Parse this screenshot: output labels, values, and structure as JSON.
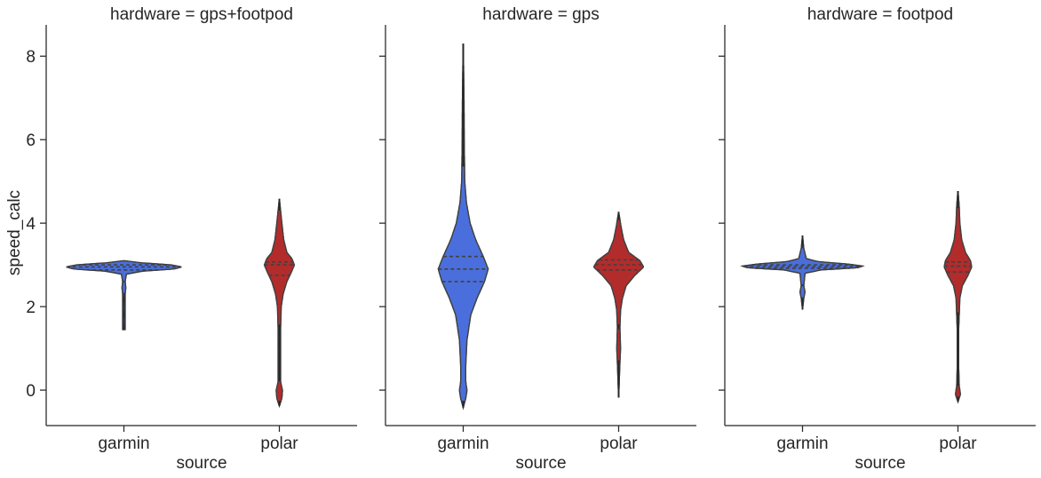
{
  "chart_data": {
    "type": "violin",
    "ylabel": "speed_calc",
    "xlabel": "source",
    "ylim": [
      -0.85,
      8.75
    ],
    "yticks": [
      0,
      2,
      4,
      6,
      8
    ],
    "categories": [
      "garmin",
      "polar"
    ],
    "colors": {
      "garmin": "#4a6fdc",
      "polar": "#b22c2c"
    },
    "facet_variable": "hardware",
    "facets": [
      {
        "title": "hardware = gps+footpod",
        "violins": [
          {
            "category": "garmin",
            "min": 1.45,
            "max": 3.1,
            "q1": 2.88,
            "median": 2.95,
            "q3": 3.0,
            "profile": [
              [
                1.45,
                0.01
              ],
              [
                2.3,
                0.01
              ],
              [
                2.45,
                0.015
              ],
              [
                2.6,
                0.01
              ],
              [
                2.78,
                0.02
              ],
              [
                2.85,
                0.15
              ],
              [
                2.9,
                0.4
              ],
              [
                2.95,
                0.46
              ],
              [
                3.0,
                0.38
              ],
              [
                3.05,
                0.14
              ],
              [
                3.1,
                0.0
              ]
            ]
          },
          {
            "category": "polar",
            "min": -0.38,
            "max": 4.58,
            "q1": 2.75,
            "median": 3.0,
            "q3": 3.07,
            "profile": [
              [
                -0.38,
                0.0
              ],
              [
                -0.2,
                0.02
              ],
              [
                0.0,
                0.025
              ],
              [
                0.2,
                0.01
              ],
              [
                0.5,
                0.01
              ],
              [
                1.5,
                0.01
              ],
              [
                2.0,
                0.015
              ],
              [
                2.3,
                0.03
              ],
              [
                2.6,
                0.06
              ],
              [
                2.85,
                0.1
              ],
              [
                3.0,
                0.12
              ],
              [
                3.15,
                0.1
              ],
              [
                3.3,
                0.06
              ],
              [
                3.6,
                0.035
              ],
              [
                4.0,
                0.02
              ],
              [
                4.3,
                0.01
              ],
              [
                4.58,
                0.0
              ]
            ]
          }
        ]
      },
      {
        "title": "hardware = gps",
        "violins": [
          {
            "category": "garmin",
            "min": -0.42,
            "max": 8.3,
            "q1": 2.6,
            "median": 2.9,
            "q3": 3.2,
            "profile": [
              [
                -0.42,
                0.0
              ],
              [
                -0.2,
                0.02
              ],
              [
                0.0,
                0.03
              ],
              [
                0.2,
                0.02
              ],
              [
                0.6,
                0.02
              ],
              [
                1.2,
                0.03
              ],
              [
                1.8,
                0.06
              ],
              [
                2.2,
                0.11
              ],
              [
                2.6,
                0.17
              ],
              [
                2.9,
                0.2
              ],
              [
                3.2,
                0.16
              ],
              [
                3.6,
                0.1
              ],
              [
                4.0,
                0.055
              ],
              [
                4.5,
                0.025
              ],
              [
                5.0,
                0.012
              ],
              [
                6.0,
                0.008
              ],
              [
                7.0,
                0.006
              ],
              [
                8.3,
                0.0
              ]
            ]
          },
          {
            "category": "polar",
            "min": -0.18,
            "max": 4.27,
            "q1": 2.88,
            "median": 3.0,
            "q3": 3.12,
            "profile": [
              [
                -0.18,
                0.0
              ],
              [
                0.5,
                0.008
              ],
              [
                1.0,
                0.015
              ],
              [
                1.5,
                0.01
              ],
              [
                1.9,
                0.015
              ],
              [
                2.2,
                0.03
              ],
              [
                2.5,
                0.06
              ],
              [
                2.75,
                0.13
              ],
              [
                2.95,
                0.2
              ],
              [
                3.1,
                0.17
              ],
              [
                3.3,
                0.08
              ],
              [
                3.6,
                0.04
              ],
              [
                3.9,
                0.02
              ],
              [
                4.27,
                0.0
              ]
            ]
          }
        ]
      },
      {
        "title": "hardware = footpod",
        "violins": [
          {
            "category": "garmin",
            "min": 1.93,
            "max": 3.7,
            "q1": 2.92,
            "median": 2.96,
            "q3": 3.0,
            "profile": [
              [
                1.93,
                0.0
              ],
              [
                2.2,
                0.01
              ],
              [
                2.35,
                0.02
              ],
              [
                2.5,
                0.01
              ],
              [
                2.8,
                0.02
              ],
              [
                2.88,
                0.15
              ],
              [
                2.93,
                0.44
              ],
              [
                2.97,
                0.48
              ],
              [
                3.02,
                0.36
              ],
              [
                3.08,
                0.12
              ],
              [
                3.15,
                0.03
              ],
              [
                3.4,
                0.01
              ],
              [
                3.7,
                0.0
              ]
            ]
          },
          {
            "category": "polar",
            "min": -0.28,
            "max": 4.77,
            "q1": 2.83,
            "median": 2.97,
            "q3": 3.07,
            "profile": [
              [
                -0.28,
                0.0
              ],
              [
                -0.1,
                0.02
              ],
              [
                0.1,
                0.01
              ],
              [
                0.5,
                0.006
              ],
              [
                1.5,
                0.006
              ],
              [
                2.2,
                0.015
              ],
              [
                2.5,
                0.035
              ],
              [
                2.75,
                0.08
              ],
              [
                2.95,
                0.11
              ],
              [
                3.1,
                0.1
              ],
              [
                3.3,
                0.06
              ],
              [
                3.6,
                0.03
              ],
              [
                4.0,
                0.015
              ],
              [
                4.4,
                0.01
              ],
              [
                4.77,
                0.0
              ]
            ]
          }
        ]
      }
    ]
  }
}
